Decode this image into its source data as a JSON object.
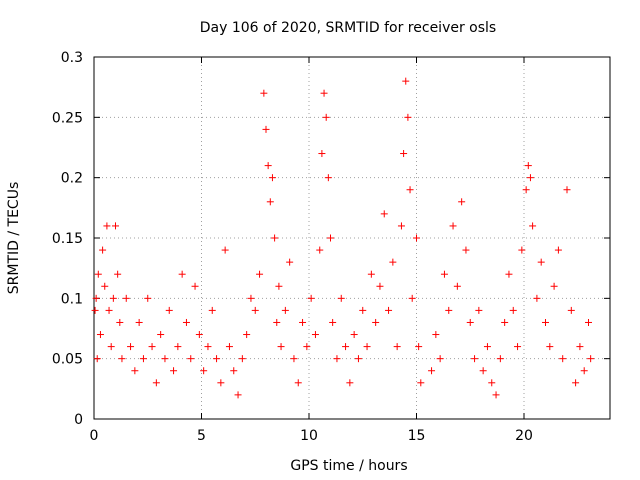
{
  "chart_data": {
    "type": "scatter",
    "title": "Day 106 of 2020, SRMTID for receiver osls",
    "xlabel": "GPS time / hours",
    "ylabel": "SRMTID / TECUs",
    "xlim": [
      0,
      24
    ],
    "ylim": [
      0,
      0.3
    ],
    "xticks": [
      0,
      5,
      10,
      15,
      20
    ],
    "xtick_labels": [
      "0",
      "5",
      "10",
      "15",
      "20"
    ],
    "yticks": [
      0,
      0.05,
      0.1,
      0.15,
      0.2,
      0.25,
      0.3
    ],
    "ytick_labels": [
      "0",
      "0.05",
      "0.1",
      "0.15",
      "0.2",
      "0.25",
      "0.3"
    ],
    "grid": true,
    "marker": "+",
    "color": "#ff0000",
    "series": [
      {
        "name": "osls",
        "points": [
          [
            0.05,
            0.09
          ],
          [
            0.1,
            0.1
          ],
          [
            0.15,
            0.05
          ],
          [
            0.2,
            0.12
          ],
          [
            0.3,
            0.07
          ],
          [
            0.4,
            0.14
          ],
          [
            0.5,
            0.11
          ],
          [
            0.6,
            0.16
          ],
          [
            0.7,
            0.09
          ],
          [
            0.8,
            0.06
          ],
          [
            0.9,
            0.1
          ],
          [
            1.0,
            0.16
          ],
          [
            1.1,
            0.12
          ],
          [
            1.2,
            0.08
          ],
          [
            1.3,
            0.05
          ],
          [
            1.5,
            0.1
          ],
          [
            1.7,
            0.06
          ],
          [
            1.9,
            0.04
          ],
          [
            2.1,
            0.08
          ],
          [
            2.3,
            0.05
          ],
          [
            2.5,
            0.1
          ],
          [
            2.7,
            0.06
          ],
          [
            2.9,
            0.03
          ],
          [
            3.1,
            0.07
          ],
          [
            3.3,
            0.05
          ],
          [
            3.5,
            0.09
          ],
          [
            3.7,
            0.04
          ],
          [
            3.9,
            0.06
          ],
          [
            4.1,
            0.12
          ],
          [
            4.3,
            0.08
          ],
          [
            4.5,
            0.05
          ],
          [
            4.7,
            0.11
          ],
          [
            4.9,
            0.07
          ],
          [
            5.1,
            0.04
          ],
          [
            5.3,
            0.06
          ],
          [
            5.5,
            0.09
          ],
          [
            5.7,
            0.05
          ],
          [
            5.9,
            0.03
          ],
          [
            6.1,
            0.14
          ],
          [
            6.3,
            0.06
          ],
          [
            6.5,
            0.04
          ],
          [
            6.7,
            0.02
          ],
          [
            6.9,
            0.05
          ],
          [
            7.1,
            0.07
          ],
          [
            7.3,
            0.1
          ],
          [
            7.5,
            0.09
          ],
          [
            7.7,
            0.12
          ],
          [
            7.9,
            0.27
          ],
          [
            8.0,
            0.24
          ],
          [
            8.1,
            0.21
          ],
          [
            8.2,
            0.18
          ],
          [
            8.3,
            0.2
          ],
          [
            8.4,
            0.15
          ],
          [
            8.5,
            0.08
          ],
          [
            8.6,
            0.11
          ],
          [
            8.7,
            0.06
          ],
          [
            8.9,
            0.09
          ],
          [
            9.1,
            0.13
          ],
          [
            9.3,
            0.05
          ],
          [
            9.5,
            0.03
          ],
          [
            9.7,
            0.08
          ],
          [
            9.9,
            0.06
          ],
          [
            10.1,
            0.1
          ],
          [
            10.3,
            0.07
          ],
          [
            10.5,
            0.14
          ],
          [
            10.6,
            0.22
          ],
          [
            10.7,
            0.27
          ],
          [
            10.8,
            0.25
          ],
          [
            10.9,
            0.2
          ],
          [
            11.0,
            0.15
          ],
          [
            11.1,
            0.08
          ],
          [
            11.3,
            0.05
          ],
          [
            11.5,
            0.1
          ],
          [
            11.7,
            0.06
          ],
          [
            11.9,
            0.03
          ],
          [
            12.1,
            0.07
          ],
          [
            12.3,
            0.05
          ],
          [
            12.5,
            0.09
          ],
          [
            12.7,
            0.06
          ],
          [
            12.9,
            0.12
          ],
          [
            13.1,
            0.08
          ],
          [
            13.3,
            0.11
          ],
          [
            13.5,
            0.17
          ],
          [
            13.7,
            0.09
          ],
          [
            13.9,
            0.13
          ],
          [
            14.1,
            0.06
          ],
          [
            14.3,
            0.16
          ],
          [
            14.4,
            0.22
          ],
          [
            14.5,
            0.28
          ],
          [
            14.6,
            0.25
          ],
          [
            14.7,
            0.19
          ],
          [
            14.8,
            0.1
          ],
          [
            15.0,
            0.15
          ],
          [
            15.1,
            0.06
          ],
          [
            15.2,
            0.03
          ],
          [
            15.7,
            0.04
          ],
          [
            15.9,
            0.07
          ],
          [
            16.1,
            0.05
          ],
          [
            16.3,
            0.12
          ],
          [
            16.5,
            0.09
          ],
          [
            16.7,
            0.16
          ],
          [
            16.9,
            0.11
          ],
          [
            17.1,
            0.18
          ],
          [
            17.3,
            0.14
          ],
          [
            17.5,
            0.08
          ],
          [
            17.7,
            0.05
          ],
          [
            17.9,
            0.09
          ],
          [
            18.1,
            0.04
          ],
          [
            18.3,
            0.06
          ],
          [
            18.5,
            0.03
          ],
          [
            18.7,
            0.02
          ],
          [
            18.9,
            0.05
          ],
          [
            19.1,
            0.08
          ],
          [
            19.3,
            0.12
          ],
          [
            19.5,
            0.09
          ],
          [
            19.7,
            0.06
          ],
          [
            19.9,
            0.14
          ],
          [
            20.1,
            0.19
          ],
          [
            20.2,
            0.21
          ],
          [
            20.3,
            0.2
          ],
          [
            20.4,
            0.16
          ],
          [
            20.6,
            0.1
          ],
          [
            20.8,
            0.13
          ],
          [
            21.0,
            0.08
          ],
          [
            21.2,
            0.06
          ],
          [
            21.4,
            0.11
          ],
          [
            21.6,
            0.14
          ],
          [
            21.8,
            0.05
          ],
          [
            22.0,
            0.19
          ],
          [
            22.2,
            0.09
          ],
          [
            22.4,
            0.03
          ],
          [
            22.6,
            0.06
          ],
          [
            22.8,
            0.04
          ],
          [
            23.0,
            0.08
          ],
          [
            23.1,
            0.05
          ]
        ]
      }
    ]
  }
}
